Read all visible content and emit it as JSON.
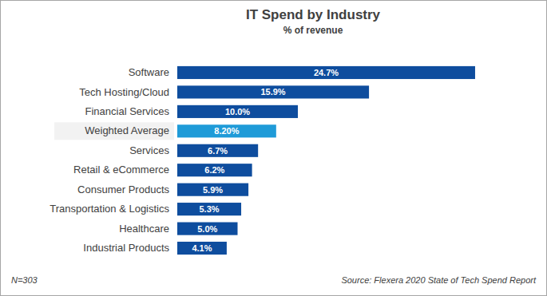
{
  "chart_data": {
    "type": "bar",
    "orientation": "horizontal",
    "title": "IT Spend by Industry",
    "subtitle": "% of revenue",
    "categories": [
      "Software",
      "Tech Hosting/Cloud",
      "Financial Services",
      "Weighted Average",
      "Services",
      "Retail & eCommerce",
      "Consumer Products",
      "Transportation & Logistics",
      "Healthcare",
      "Industrial Products"
    ],
    "values": [
      24.7,
      15.9,
      10.0,
      8.2,
      6.7,
      6.2,
      5.9,
      5.3,
      5.0,
      4.1
    ],
    "value_labels": [
      "24.7%",
      "15.9%",
      "10.0%",
      "8.20%",
      "6.7%",
      "6.2%",
      "5.9%",
      "5.3%",
      "5.0%",
      "4.1%"
    ],
    "colors": [
      "#0e4d9e",
      "#0e4d9e",
      "#0e4d9e",
      "#1f9bd8",
      "#0e4d9e",
      "#0e4d9e",
      "#0e4d9e",
      "#0e4d9e",
      "#0e4d9e",
      "#0e4d9e"
    ],
    "xlim": [
      0,
      25
    ],
    "data_labels": true,
    "tick_labels": "y",
    "grid": false,
    "annotations": [
      "N=303",
      "Source: Flexera 2020 State of Tech Spend Report"
    ]
  }
}
